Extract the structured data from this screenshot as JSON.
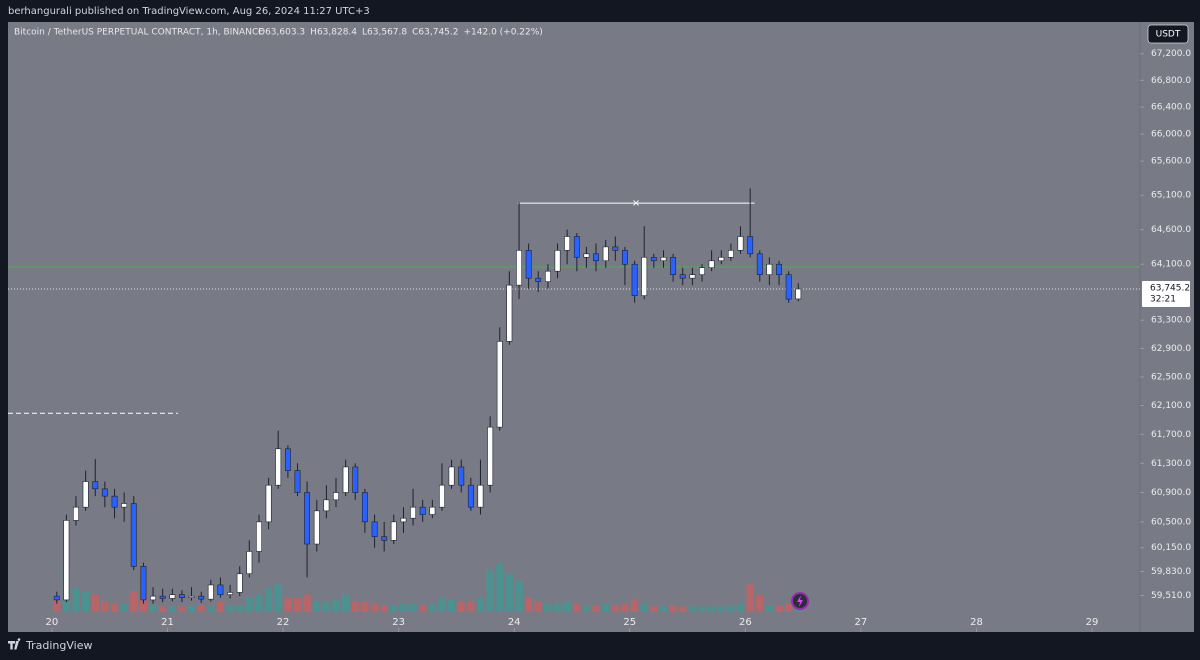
{
  "header": {
    "published": "berhangurali published on TradingView.com, Aug 26, 2024 11:27 UTC+3",
    "logo": "TradingView",
    "currency": "USDT"
  },
  "chart_data": {
    "type": "candlestick",
    "symbol": "Bitcoin / TetherUS PERPETUAL CONTRACT, 1h, BINANCE",
    "ohlc": [
      "O63,603.3",
      "H63,828.4",
      "L63,567.8",
      "C63,745.2",
      "+142.0 (+0.22%)"
    ],
    "x": [
      20.042,
      20.125,
      20.208,
      20.292,
      20.375,
      20.458,
      20.542,
      20.625,
      20.708,
      20.792,
      20.875,
      20.958,
      21.042,
      21.125,
      21.208,
      21.292,
      21.375,
      21.458,
      21.542,
      21.625,
      21.708,
      21.792,
      21.875,
      21.958,
      22.042,
      22.125,
      22.208,
      22.292,
      22.375,
      22.458,
      22.542,
      22.625,
      22.708,
      22.792,
      22.875,
      22.958,
      23.042,
      23.125,
      23.208,
      23.292,
      23.375,
      23.458,
      23.542,
      23.625,
      23.708,
      23.792,
      23.875,
      23.958,
      24.042,
      24.125,
      24.208,
      24.292,
      24.375,
      24.458,
      24.542,
      24.625,
      24.708,
      24.792,
      24.875,
      24.958,
      25.042,
      25.125,
      25.208,
      25.292,
      25.375,
      25.458,
      25.542,
      25.625,
      25.708,
      25.792,
      25.875,
      25.958,
      26.042,
      26.125,
      26.208,
      26.292,
      26.375,
      26.458
    ],
    "open": [
      59500,
      59450,
      60520,
      60700,
      61050,
      60950,
      60850,
      60700,
      60750,
      59900,
      59450,
      59500,
      59470,
      59520,
      59480,
      59500,
      59460,
      59650,
      59520,
      59550,
      59800,
      60100,
      60500,
      61000,
      61500,
      61200,
      60900,
      60200,
      60650,
      60800,
      60900,
      61250,
      60900,
      60500,
      60300,
      60250,
      60500,
      60550,
      60700,
      60600,
      60700,
      61000,
      61250,
      61000,
      60700,
      61000,
      61800,
      63000,
      63800,
      64300,
      63900,
      63850,
      64000,
      64300,
      64500,
      64200,
      64250,
      64150,
      64350,
      64300,
      64100,
      63650,
      64200,
      64150,
      64200,
      63950,
      63900,
      63950,
      64050,
      64150,
      64200,
      64300,
      64500,
      64250,
      63950,
      64100,
      63950,
      63603.3
    ],
    "high": [
      59560,
      60600,
      60850,
      61200,
      61360,
      61050,
      60950,
      60900,
      60850,
      59950,
      59620,
      59600,
      59600,
      59580,
      59620,
      59560,
      59720,
      59750,
      59650,
      59900,
      60250,
      60600,
      61100,
      61750,
      61550,
      61300,
      61050,
      60800,
      61000,
      61100,
      61350,
      61300,
      60950,
      60600,
      60500,
      60600,
      60700,
      60950,
      60800,
      60800,
      61300,
      61350,
      61350,
      61100,
      61350,
      61950,
      63200,
      64000,
      65000,
      64400,
      64000,
      64100,
      64400,
      64600,
      64550,
      64350,
      64400,
      64450,
      64500,
      64350,
      64150,
      64650,
      64250,
      64300,
      64250,
      64050,
      64050,
      64100,
      64300,
      64300,
      64400,
      64650,
      65200,
      64300,
      64200,
      64150,
      64000,
      63828.4
    ],
    "low": [
      59400,
      59420,
      60450,
      60650,
      60850,
      60700,
      60550,
      60500,
      59850,
      59400,
      59400,
      59420,
      59430,
      59420,
      59440,
      59410,
      59430,
      59480,
      59470,
      59500,
      59750,
      59950,
      60400,
      60950,
      61100,
      60850,
      59750,
      60100,
      60550,
      60700,
      60850,
      60800,
      60350,
      60150,
      60100,
      60200,
      60350,
      60450,
      60500,
      60550,
      60650,
      60950,
      60900,
      60650,
      60600,
      60900,
      61750,
      62950,
      63600,
      63750,
      63700,
      63750,
      63900,
      64100,
      64000,
      64050,
      64000,
      64050,
      64150,
      63800,
      63550,
      63600,
      64050,
      64050,
      63850,
      63800,
      63800,
      63850,
      64000,
      64100,
      64150,
      64250,
      64200,
      63850,
      63800,
      63800,
      63550,
      63567.8
    ],
    "close": [
      59450,
      60520,
      60700,
      61050,
      60950,
      60850,
      60700,
      60750,
      59900,
      59450,
      59500,
      59470,
      59520,
      59480,
      59500,
      59460,
      59650,
      59520,
      59550,
      59800,
      60100,
      60500,
      61000,
      61500,
      61200,
      60900,
      60200,
      60650,
      60800,
      60900,
      61250,
      60900,
      60500,
      60300,
      60250,
      60500,
      60550,
      60700,
      60600,
      60700,
      61000,
      61250,
      61000,
      60700,
      61000,
      61800,
      63000,
      63800,
      64300,
      63900,
      63850,
      64000,
      64300,
      64500,
      64200,
      64250,
      64150,
      64350,
      64300,
      64100,
      63650,
      64200,
      64150,
      64200,
      63950,
      63900,
      63950,
      64050,
      64150,
      64200,
      64300,
      64500,
      64250,
      63950,
      64100,
      63950,
      63600,
      63745.2
    ],
    "volume": [
      20,
      60,
      35,
      30,
      25,
      15,
      12,
      12,
      30,
      25,
      10,
      8,
      8,
      8,
      8,
      10,
      8,
      15,
      10,
      10,
      20,
      25,
      35,
      40,
      20,
      20,
      25,
      15,
      15,
      18,
      25,
      15,
      15,
      12,
      10,
      10,
      12,
      12,
      10,
      12,
      20,
      18,
      15,
      15,
      20,
      60,
      70,
      55,
      45,
      20,
      15,
      12,
      12,
      15,
      12,
      10,
      10,
      12,
      10,
      12,
      18,
      12,
      8,
      8,
      10,
      8,
      8,
      8,
      8,
      8,
      10,
      12,
      40,
      25,
      10,
      10,
      12,
      8
    ],
    "volume_lim": [
      0,
      100
    ],
    "up_color": "#ffffff",
    "down_color": "#2962ff",
    "volume_up_color": "#26a69a",
    "volume_down_color": "#ef5350",
    "log_scale": true,
    "xlim": [
      19.62,
      29.415
    ],
    "xticks": [
      20,
      21,
      22,
      23,
      24,
      25,
      26,
      27,
      28,
      29
    ],
    "ylim": [
      59050,
      67680
    ],
    "yticks": [
      {
        "value": 67200,
        "label": "67,200.0"
      },
      {
        "value": 66800,
        "label": "66,800.0"
      },
      {
        "value": 66400,
        "label": "66,400.0"
      },
      {
        "value": 66000,
        "label": "66,000.0"
      },
      {
        "value": 65600,
        "label": "65,600.0"
      },
      {
        "value": 65100,
        "label": "65,100.0"
      },
      {
        "value": 64600,
        "label": "64,600.0"
      },
      {
        "value": 64100,
        "label": "64,100.0"
      },
      {
        "value": 63300,
        "label": "63,300.0"
      },
      {
        "value": 62900,
        "label": "62,900.0"
      },
      {
        "value": 62500,
        "label": "62,500.0"
      },
      {
        "value": 62100,
        "label": "62,100.0"
      },
      {
        "value": 61700,
        "label": "61,700.0"
      },
      {
        "value": 61300,
        "label": "61,300.0"
      },
      {
        "value": 60900,
        "label": "60,900.0"
      },
      {
        "value": 60500,
        "label": "60,500.0"
      },
      {
        "value": 60150,
        "label": "60,150.0"
      },
      {
        "value": 59830,
        "label": "59,830.0"
      },
      {
        "value": 59510,
        "label": "59,510.0"
      }
    ],
    "last_price": {
      "value": 63745.2,
      "label": "63,745.2"
    },
    "countdown": "32:21",
    "levels": [
      {
        "value": 64060,
        "color": "#4caf50"
      },
      {
        "value": 61992,
        "color": "#ffffff",
        "x": [
          19.62,
          21.09
        ],
        "dashed": true
      },
      {
        "value": 64985,
        "color": "#ffffff",
        "x": [
          24.03,
          26.08
        ]
      }
    ]
  }
}
